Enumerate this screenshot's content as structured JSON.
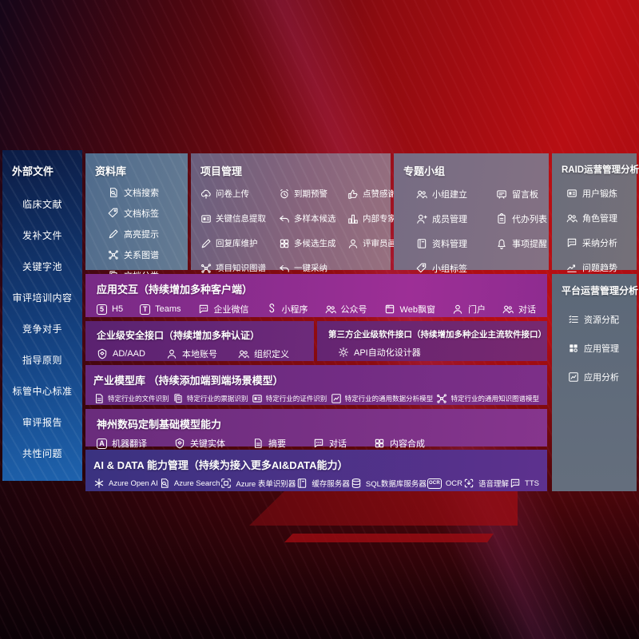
{
  "colors": {
    "background_red": "#b80e13",
    "sidebar_blue": "#1e62ad",
    "panel_slate": "#6e737f",
    "bar_magenta": "#9d2f96",
    "bar_purple": "#6d2a7a",
    "bar_indigo": "#3a3280"
  },
  "sidebar": {
    "title": "外部文件",
    "items": [
      {
        "label": "临床文献"
      },
      {
        "label": "发补文件"
      },
      {
        "label": "关键字池"
      },
      {
        "label": "审评培训内容"
      },
      {
        "label": "竞争对手"
      },
      {
        "label": "指导原则"
      },
      {
        "label": "标管中心标准"
      },
      {
        "label": "审评报告"
      },
      {
        "label": "共性问题"
      }
    ]
  },
  "panels": {
    "library": {
      "title": "资料库",
      "items": [
        {
          "label": "文档搜索",
          "icon": "doc-search-icon",
          "sym": "doc-search"
        },
        {
          "label": "文档标签",
          "icon": "doc-tag-icon",
          "sym": "tag"
        },
        {
          "label": "高亮提示",
          "icon": "highlighter-icon",
          "sym": "pen"
        },
        {
          "label": "关系图谱",
          "icon": "relation-graph-icon",
          "sym": "graph"
        },
        {
          "label": "文档分类",
          "icon": "doc-category-icon",
          "sym": "docs"
        }
      ]
    },
    "project": {
      "title": "项目管理",
      "items": [
        {
          "label": "问卷上传",
          "icon": "cloud-upload-icon",
          "sym": "cloud-up"
        },
        {
          "label": "到期预警",
          "icon": "alarm-warning-icon",
          "sym": "alarm"
        },
        {
          "label": "点赞感谢",
          "icon": "thumbs-up-icon",
          "sym": "thumb"
        },
        {
          "label": "关键信息提取",
          "icon": "info-extract-icon",
          "sym": "card"
        },
        {
          "label": "多样本候选",
          "icon": "multi-sample-icon",
          "sym": "reply"
        },
        {
          "label": "内部专家排名",
          "icon": "expert-rank-icon",
          "sym": "podium"
        },
        {
          "label": "回复库维护",
          "icon": "reply-maintain-icon",
          "sym": "pen"
        },
        {
          "label": "多候选生成",
          "icon": "multi-candidate-icon",
          "sym": "grid"
        },
        {
          "label": "评审员画像",
          "icon": "reviewer-avatar-icon",
          "sym": "person"
        },
        {
          "label": "项目知识图谱",
          "icon": "knowledge-graph-icon",
          "sym": "graph"
        },
        {
          "label": "一键采纳",
          "icon": "one-click-adopt-icon",
          "sym": "reply"
        }
      ]
    },
    "groups": {
      "title": "专题小组",
      "items": [
        {
          "label": "小组建立",
          "icon": "group-create-icon",
          "sym": "people"
        },
        {
          "label": "留言板",
          "icon": "message-board-icon",
          "sym": "bbs"
        },
        {
          "label": "成员管理",
          "icon": "member-manage-icon",
          "sym": "person-add"
        },
        {
          "label": "代办列表",
          "icon": "todo-list-icon",
          "sym": "clipboard"
        },
        {
          "label": "资料管理",
          "icon": "material-manage-icon",
          "sym": "book"
        },
        {
          "label": "事项提醒",
          "icon": "reminder-bell-icon",
          "sym": "bell"
        },
        {
          "label": "小组标签",
          "icon": "group-tag-icon",
          "sym": "tag"
        }
      ]
    },
    "raid": {
      "title": "RAID运营管理分析",
      "items": [
        {
          "label": "用户锻炼",
          "icon": "user-card-icon",
          "sym": "card"
        },
        {
          "label": "角色管理",
          "icon": "role-manage-icon",
          "sym": "people"
        },
        {
          "label": "采纳分析",
          "icon": "adoption-analysis-icon",
          "sym": "chat"
        },
        {
          "label": "问题趋势",
          "icon": "issue-trend-icon",
          "sym": "trend"
        }
      ]
    },
    "platform": {
      "title": "平台运营管理分析",
      "items": [
        {
          "label": "资源分配",
          "icon": "resource-list-icon",
          "sym": "list"
        },
        {
          "label": "应用管理",
          "icon": "app-grid-icon",
          "sym": "apps"
        },
        {
          "label": "应用分析",
          "icon": "app-analysis-icon",
          "sym": "chart-box"
        }
      ]
    }
  },
  "bars": {
    "interaction": {
      "title": "应用交互（持续增加多种客户端）",
      "items": [
        {
          "label": "H5",
          "icon": "html5-icon",
          "glyph": "5"
        },
        {
          "label": "Teams",
          "icon": "teams-icon",
          "glyph": "T"
        },
        {
          "label": "企业微信",
          "icon": "wechat-work-icon",
          "sym": "chat"
        },
        {
          "label": "小程序",
          "icon": "miniprogram-icon",
          "sym": "scurve"
        },
        {
          "label": "公众号",
          "icon": "official-account-icon",
          "sym": "people"
        },
        {
          "label": "Web飘窗",
          "icon": "web-popup-icon",
          "sym": "window"
        },
        {
          "label": "门户",
          "icon": "portal-icon",
          "sym": "person"
        },
        {
          "label": "对话",
          "icon": "dialog-icon",
          "sym": "people"
        }
      ]
    },
    "security": {
      "title": "企业级安全接口（持续增加多种认证）",
      "items": [
        {
          "label": "AD/AAD",
          "icon": "ad-aad-icon",
          "sym": "shield"
        },
        {
          "label": "本地账号",
          "icon": "local-account-icon",
          "sym": "person"
        },
        {
          "label": "组织定义",
          "icon": "org-define-icon",
          "sym": "people"
        }
      ]
    },
    "thirdparty": {
      "title": "第三方企业级软件接口（持续增加多种企业主流软件接口）",
      "items": [
        {
          "label": "API自动化设计器",
          "icon": "api-designer-icon",
          "sym": "gear"
        }
      ]
    },
    "industry": {
      "title": "产业模型库 （持续添加端到端场景模型）",
      "items": [
        {
          "label": "特定行业的文件识别",
          "icon": "file-recognize-icon",
          "sym": "doc"
        },
        {
          "label": "特定行业的票据识别",
          "icon": "invoice-recognize-icon",
          "sym": "docs"
        },
        {
          "label": "特定行业的证件识别",
          "icon": "certificate-recognize-icon",
          "sym": "card"
        },
        {
          "label": "特定行业的通用数据分析模型",
          "icon": "data-model-icon",
          "sym": "chart-box"
        },
        {
          "label": "特定行业的通用知识图谱模型",
          "icon": "kg-model-icon",
          "sym": "graph"
        }
      ]
    },
    "basemodel": {
      "title": "神州数码定制基础模型能力",
      "items": [
        {
          "label": "机器翻译",
          "icon": "translate-icon",
          "glyph": "A"
        },
        {
          "label": "关键实体",
          "icon": "key-entity-icon",
          "sym": "shield"
        },
        {
          "label": "摘要",
          "icon": "summary-icon",
          "sym": "doc"
        },
        {
          "label": "对话",
          "icon": "dialog-icon",
          "sym": "chat"
        },
        {
          "label": "内容合成",
          "icon": "content-synthesis-icon",
          "sym": "grid"
        }
      ]
    },
    "aidata": {
      "title": "AI & DATA 能力管理（持续为接入更多AI&DATA能力）",
      "items": [
        {
          "label": "Azure Open AI",
          "icon": "azure-openai-icon",
          "sym": "asterisk"
        },
        {
          "label": "Azure Search",
          "icon": "azure-search-icon",
          "sym": "doc-search"
        },
        {
          "label": "Azure 表单识别器",
          "icon": "form-recognizer-icon",
          "sym": "scan"
        },
        {
          "label": "缓存服务器",
          "icon": "cache-server-icon",
          "sym": "book"
        },
        {
          "label": "SQL数据库服务器",
          "icon": "sql-server-icon",
          "sym": "db"
        },
        {
          "label": "OCR",
          "icon": "ocr-icon",
          "glyph": "OCR"
        },
        {
          "label": "语音理解",
          "icon": "speech-icon",
          "sym": "voice-down"
        },
        {
          "label": "TTS",
          "icon": "tts-icon",
          "sym": "chat"
        }
      ]
    }
  }
}
